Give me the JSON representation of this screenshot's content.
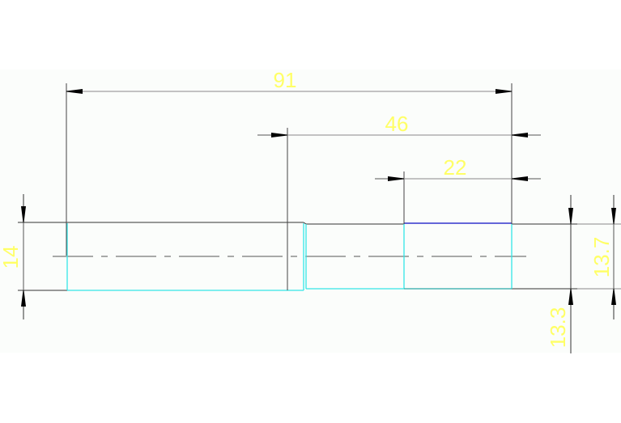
{
  "drawing": {
    "dimensions": {
      "overall_length": "91",
      "length_46": "46",
      "length_22": "22",
      "diameter_left": "14",
      "diameter_right_13_7": "13.7",
      "diameter_right_13_3": "13.3"
    },
    "colors": {
      "background": "#fbfdfb",
      "outline": "#333333",
      "dimension_line": "#555555",
      "edge_cyan": "#33e6e6",
      "edge_blue": "#3333cc",
      "dimension_text": "#ffff66"
    }
  }
}
